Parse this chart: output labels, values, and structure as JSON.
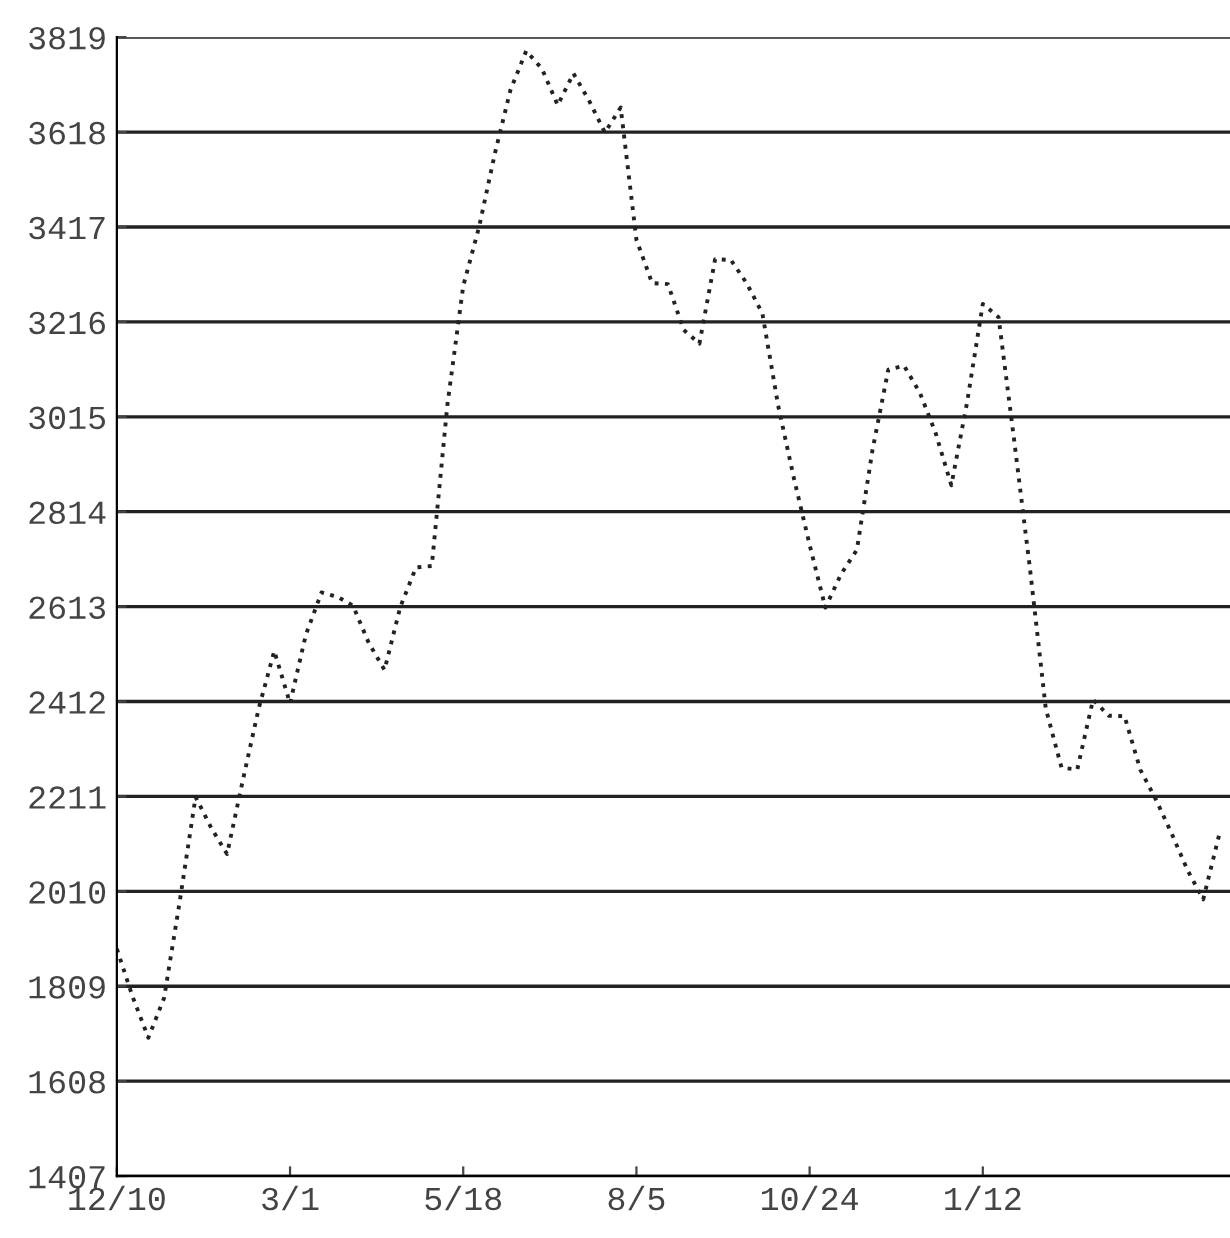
{
  "chart_data": {
    "type": "line",
    "categories": [
      "12/10",
      null,
      null,
      null,
      null,
      null,
      null,
      null,
      null,
      null,
      null,
      "3/1",
      null,
      null,
      null,
      null,
      null,
      null,
      null,
      null,
      null,
      null,
      "5/18",
      null,
      null,
      null,
      null,
      null,
      null,
      null,
      null,
      null,
      null,
      "8/5",
      null,
      null,
      null,
      null,
      null,
      null,
      null,
      null,
      null,
      null,
      "10/24",
      null,
      null,
      null,
      null,
      null,
      null,
      null,
      null,
      null,
      null,
      "1/12",
      null,
      null,
      null,
      null,
      null,
      null,
      null,
      null,
      null,
      null,
      null,
      null,
      null,
      null,
      null
    ],
    "series": [
      {
        "color": "#222222",
        "values": [
          1888,
          1787,
          1700,
          1784,
          1990,
          2210,
          2144,
          2089,
          2245,
          2396,
          2519,
          2408,
          2553,
          2643,
          2634,
          2615,
          2536,
          2479,
          2612,
          2696,
          2699,
          3042,
          3292,
          3416,
          3571,
          3707,
          3790,
          3752,
          3675,
          3742,
          3684,
          3617,
          3670,
          3390,
          3298,
          3296,
          3199,
          3170,
          3349,
          3347,
          3298,
          3234,
          3039,
          2885,
          2744,
          2611,
          2682,
          2733,
          2946,
          3115,
          3123,
          3066,
          2981,
          2870,
          3045,
          3254,
          3226,
          2963,
          2692,
          2397,
          2272,
          2268,
          2416,
          2382,
          2381,
          2268,
          2204,
          2132,
          2055,
          1993,
          2128
        ]
      }
    ],
    "ylim": [
      1407,
      3819
    ],
    "yticks": [
      1407,
      1608,
      1809,
      2010,
      2211,
      2412,
      2613,
      2814,
      3015,
      3216,
      3417,
      3618,
      3819
    ],
    "grid": "y",
    "marker": "none",
    "line_style": "dotted"
  }
}
